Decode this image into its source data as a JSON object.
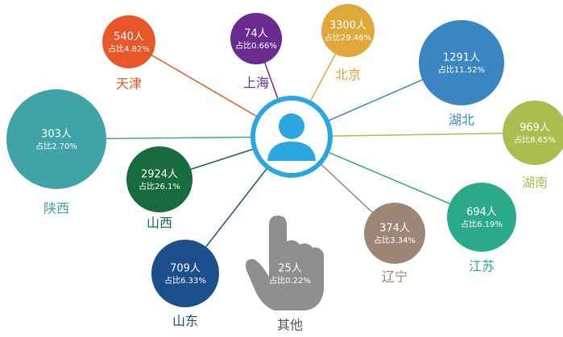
{
  "nodes": [
    {
      "count": "540人",
      "share": "占比4.82%",
      "label": "天津",
      "color": "#e8572a"
    },
    {
      "count": "74人",
      "share": "占比0.66%",
      "label": "上海",
      "color": "#6a2c91"
    },
    {
      "count": "3300人",
      "share": "占比29.46%",
      "label": "北京",
      "color": "#e0a83a"
    },
    {
      "count": "1291人",
      "share": "占比11.52%",
      "label": "湖北",
      "color": "#3a86c2"
    },
    {
      "count": "969人",
      "share": "占比8.65%",
      "label": "湖南",
      "color": "#a9be4e"
    },
    {
      "count": "694人",
      "share": "占比6.19%",
      "label": "江苏",
      "color": "#2aaa8a"
    },
    {
      "count": "374人",
      "share": "占比3.34%",
      "label": "辽宁",
      "color": "#9e8677"
    },
    {
      "count": "709人",
      "share": "占比6.33%",
      "label": "山东",
      "color": "#1c4f8c"
    },
    {
      "count": "2924人",
      "share": "占比26.1%",
      "label": "山西",
      "color": "#176b3c"
    },
    {
      "count": "303人",
      "share": "占比2.70%",
      "label": "陕西",
      "color": "#3fa3a8"
    },
    {
      "count": "25人",
      "share": "占比0.22%",
      "label": "其他",
      "color": "#8e8e8e"
    }
  ]
}
